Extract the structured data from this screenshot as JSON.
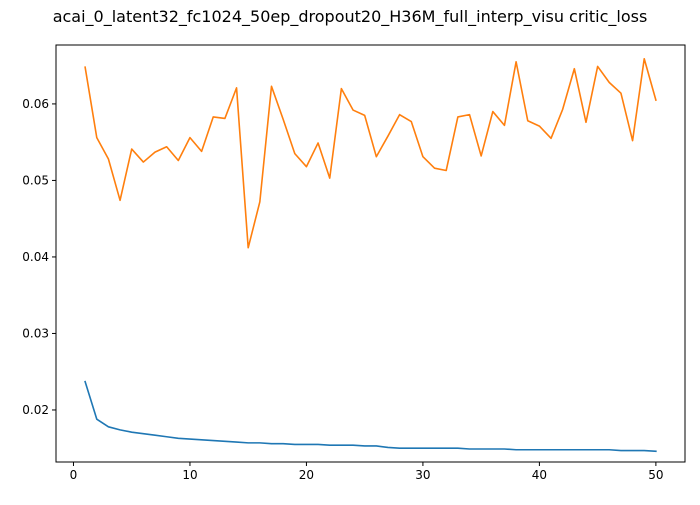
{
  "chart_data": {
    "type": "line",
    "title": "acai_0_latent32_fc1024_50ep_dropout20_H36M_full_interp_visu critic_loss",
    "xlabel": "",
    "ylabel": "",
    "xlim": [
      -1.5,
      52.5
    ],
    "ylim": [
      0.0132,
      0.0677
    ],
    "xticks": [
      0,
      10,
      20,
      30,
      40,
      50
    ],
    "yticks": [
      0.02,
      0.03,
      0.04,
      0.05,
      0.06
    ],
    "ytick_labels": [
      "0.02",
      "0.03",
      "0.04",
      "0.05",
      "0.06"
    ],
    "grid": false,
    "x": [
      1,
      2,
      3,
      4,
      5,
      6,
      7,
      8,
      9,
      10,
      11,
      12,
      13,
      14,
      15,
      16,
      17,
      18,
      19,
      20,
      21,
      22,
      23,
      24,
      25,
      26,
      27,
      28,
      29,
      30,
      31,
      32,
      33,
      34,
      35,
      36,
      37,
      38,
      39,
      40,
      41,
      42,
      43,
      44,
      45,
      46,
      47,
      48,
      49,
      50
    ],
    "series": [
      {
        "color": "#1f77b4",
        "values": [
          0.0237,
          0.0188,
          0.0178,
          0.0174,
          0.0171,
          0.0169,
          0.0167,
          0.0165,
          0.0163,
          0.0162,
          0.0161,
          0.016,
          0.0159,
          0.0158,
          0.0157,
          0.0157,
          0.0156,
          0.0156,
          0.0155,
          0.0155,
          0.0155,
          0.0154,
          0.0154,
          0.0154,
          0.0153,
          0.0153,
          0.0151,
          0.015,
          0.015,
          0.015,
          0.015,
          0.015,
          0.015,
          0.0149,
          0.0149,
          0.0149,
          0.0149,
          0.0148,
          0.0148,
          0.0148,
          0.0148,
          0.0148,
          0.0148,
          0.0148,
          0.0148,
          0.0148,
          0.0147,
          0.0147,
          0.0147,
          0.0146
        ]
      },
      {
        "color": "#ff7f0e",
        "values": [
          0.0648,
          0.0556,
          0.0528,
          0.0474,
          0.0541,
          0.0524,
          0.0537,
          0.0544,
          0.0526,
          0.0556,
          0.0538,
          0.0583,
          0.0581,
          0.0621,
          0.0412,
          0.0472,
          0.0623,
          0.058,
          0.0535,
          0.0518,
          0.0549,
          0.0503,
          0.062,
          0.0592,
          0.0585,
          0.0531,
          0.0558,
          0.0586,
          0.0577,
          0.0531,
          0.0516,
          0.0513,
          0.0583,
          0.0586,
          0.0532,
          0.059,
          0.0572,
          0.0655,
          0.0578,
          0.0571,
          0.0555,
          0.0593,
          0.0646,
          0.0576,
          0.0649,
          0.0628,
          0.0614,
          0.0552,
          0.0659,
          0.0605
        ]
      }
    ]
  }
}
